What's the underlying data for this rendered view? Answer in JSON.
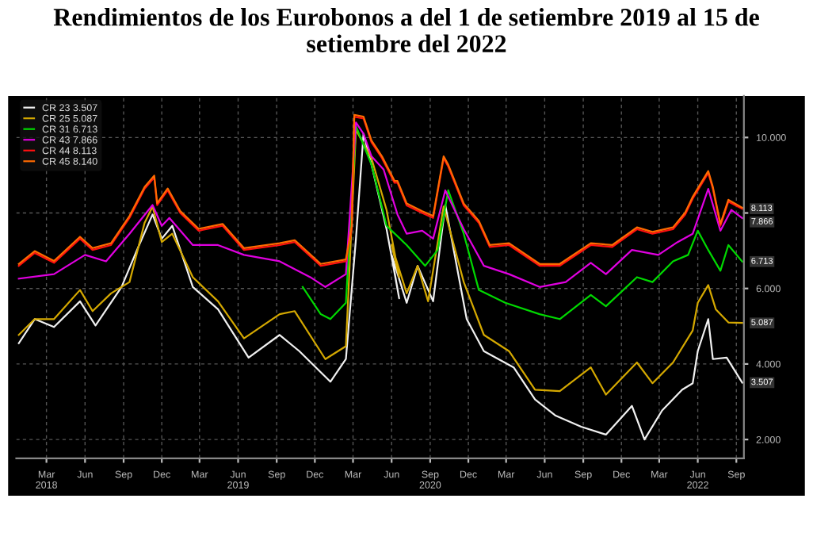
{
  "chart_data": {
    "type": "line",
    "title": "Rendimientos de los Eurobonos a del 1 de setiembre 2019 al 15 de setiembre del 2022",
    "series": [
      {
        "name": "CR 23 3.507",
        "color": "#f0f0f0",
        "x": [
          "2017-12-25",
          "2018-02-01",
          "2018-03-19",
          "2018-05-20",
          "2018-06-26",
          "2018-08-27",
          "2018-10-03",
          "2018-11-09",
          "2018-12-01",
          "2018-12-26",
          "2019-02-13",
          "2019-04-14",
          "2019-06-26",
          "2019-09-08",
          "2019-10-25",
          "2020-01-07",
          "2020-02-13",
          "2020-03-08",
          "2020-03-26",
          "2020-04-14",
          "2020-05-20",
          "2020-06-19",
          "2020-06-01",
          "2020-07-07",
          "2020-08-02",
          "2020-09-08",
          "2020-10-07",
          "2020-11-27",
          "2021-01-07",
          "2021-03-19",
          "2021-05-09",
          "2021-06-26",
          "2021-08-27",
          "2021-10-25",
          "2021-12-26",
          "2022-01-25",
          "2022-03-08",
          "2022-04-25",
          "2022-05-20",
          "2022-06-01",
          "2022-06-26",
          "2022-07-07",
          "2022-08-09",
          "2022-09-15"
        ],
        "values": [
          4.55,
          5.19,
          4.98,
          5.66,
          5.02,
          6.04,
          7.02,
          7.96,
          7.32,
          7.66,
          6.04,
          5.45,
          4.17,
          4.77,
          4.34,
          3.53,
          4.13,
          7.32,
          10.1,
          9.28,
          7.57,
          5.74,
          6.89,
          5.62,
          6.6,
          5.66,
          8.21,
          5.19,
          4.34,
          3.91,
          3.06,
          2.64,
          2.34,
          2.13,
          2.89,
          2.0,
          2.77,
          3.32,
          3.49,
          4.34,
          5.19,
          4.13,
          4.17,
          3.507
        ]
      },
      {
        "name": "CR 25 5.087",
        "color": "#d4a800",
        "x": [
          "2017-12-25",
          "2018-02-01",
          "2018-03-19",
          "2018-05-20",
          "2018-06-19",
          "2018-08-02",
          "2018-09-15",
          "2018-10-21",
          "2018-11-09",
          "2018-12-01",
          "2018-12-26",
          "2019-02-13",
          "2019-04-14",
          "2019-06-15",
          "2019-09-08",
          "2019-10-14",
          "2019-12-26",
          "2020-02-13",
          "2020-03-08",
          "2020-04-14",
          "2020-05-20",
          "2020-06-19",
          "2020-06-01",
          "2020-07-07",
          "2020-08-02",
          "2020-08-27",
          "2020-10-03",
          "2020-11-20",
          "2021-01-07",
          "2021-03-08",
          "2021-05-09",
          "2021-07-07",
          "2021-09-19",
          "2021-10-25",
          "2022-01-07",
          "2022-02-13",
          "2022-04-03",
          "2022-05-20",
          "2022-06-01",
          "2022-06-26",
          "2022-07-14",
          "2022-08-13",
          "2022-09-15"
        ],
        "values": [
          4.77,
          5.19,
          5.19,
          5.96,
          5.4,
          5.87,
          6.17,
          7.74,
          8.17,
          7.23,
          7.45,
          6.3,
          5.66,
          4.68,
          5.32,
          5.4,
          4.13,
          4.47,
          10.2,
          9.45,
          8.08,
          6.3,
          7.15,
          5.87,
          6.6,
          5.66,
          8.17,
          6.17,
          4.77,
          4.34,
          3.32,
          3.28,
          3.91,
          3.19,
          4.04,
          3.49,
          4.04,
          4.89,
          5.62,
          6.09,
          5.45,
          5.1,
          5.087
        ]
      },
      {
        "name": "CR 31 6.713",
        "color": "#00d800",
        "x": [
          "2019-11-02",
          "2019-12-15",
          "2020-01-07",
          "2020-02-13",
          "2020-03-08",
          "2020-04-14",
          "2020-05-20",
          "2020-07-07",
          "2020-08-20",
          "2020-09-19",
          "2020-10-14",
          "2020-11-20",
          "2020-12-26",
          "2021-02-27",
          "2021-05-20",
          "2021-07-07",
          "2021-09-19",
          "2021-10-25",
          "2022-01-07",
          "2022-02-13",
          "2022-04-03",
          "2022-05-09",
          "2022-06-01",
          "2022-06-26",
          "2022-07-25",
          "2022-08-13",
          "2022-09-15"
        ],
        "values": [
          6.04,
          5.32,
          5.19,
          5.62,
          10.3,
          9.28,
          7.66,
          7.15,
          6.6,
          7.02,
          8.6,
          7.45,
          5.96,
          5.62,
          5.32,
          5.19,
          5.83,
          5.53,
          6.3,
          6.17,
          6.72,
          6.89,
          7.53,
          7.02,
          6.47,
          7.15,
          6.713
        ]
      },
      {
        "name": "CR 43 7.866",
        "color": "#e000e0",
        "x": [
          "2017-12-25",
          "2018-03-19",
          "2018-06-01",
          "2018-07-21",
          "2018-09-15",
          "2018-11-09",
          "2018-12-01",
          "2018-12-19",
          "2019-02-13",
          "2019-04-14",
          "2019-06-15",
          "2019-09-08",
          "2019-11-20",
          "2019-12-26",
          "2020-02-13",
          "2020-03-08",
          "2020-03-26",
          "2020-04-14",
          "2020-05-13",
          "2020-06-15",
          "2020-07-07",
          "2020-08-13",
          "2020-09-08",
          "2020-10-07",
          "2020-11-20",
          "2021-01-07",
          "2021-03-08",
          "2021-05-20",
          "2021-07-21",
          "2021-09-19",
          "2021-10-25",
          "2021-12-26",
          "2022-02-27",
          "2022-04-14",
          "2022-05-20",
          "2022-06-26",
          "2022-07-25",
          "2022-08-20",
          "2022-09-15"
        ],
        "values": [
          6.26,
          6.38,
          6.89,
          6.72,
          7.45,
          8.21,
          7.66,
          7.87,
          7.15,
          7.15,
          6.89,
          6.72,
          6.3,
          6.04,
          6.38,
          10.4,
          10.1,
          9.5,
          9.15,
          7.96,
          7.45,
          7.53,
          7.32,
          8.6,
          7.57,
          6.6,
          6.38,
          6.04,
          6.17,
          6.68,
          6.38,
          7.02,
          6.89,
          7.23,
          7.45,
          8.64,
          7.53,
          8.08,
          7.866
        ]
      },
      {
        "name": "CR 44 8.113",
        "color": "#ff1010",
        "x": [
          "2017-12-25",
          "2018-02-01",
          "2018-03-19",
          "2018-05-20",
          "2018-06-19",
          "2018-08-02",
          "2018-09-15",
          "2018-10-21",
          "2018-11-13",
          "2018-11-20",
          "2018-12-15",
          "2019-01-14",
          "2019-02-27",
          "2019-04-25",
          "2019-06-15",
          "2019-09-08",
          "2019-10-14",
          "2019-12-15",
          "2020-02-13",
          "2020-02-27",
          "2020-03-04",
          "2020-03-26",
          "2020-04-14",
          "2020-05-09",
          "2020-06-08",
          "2020-06-15",
          "2020-07-07",
          "2020-08-13",
          "2020-09-08",
          "2020-10-03",
          "2020-10-14",
          "2020-11-20",
          "2020-12-26",
          "2021-01-21",
          "2021-03-08",
          "2021-05-20",
          "2021-07-07",
          "2021-09-19",
          "2021-11-09",
          "2022-01-07",
          "2022-02-13",
          "2022-04-03",
          "2022-05-02",
          "2022-05-20",
          "2022-06-26",
          "2022-07-07",
          "2022-07-25",
          "2022-08-13",
          "2022-09-15"
        ],
        "values": [
          6.6,
          6.94,
          6.68,
          7.32,
          7.02,
          7.15,
          7.87,
          8.64,
          8.94,
          8.21,
          8.6,
          8.0,
          7.53,
          7.66,
          7.02,
          7.15,
          7.23,
          6.6,
          6.72,
          7.6,
          10.55,
          10.5,
          9.87,
          9.45,
          8.8,
          8.8,
          8.2,
          8.0,
          7.87,
          9.45,
          9.23,
          8.2,
          7.74,
          7.1,
          7.15,
          6.6,
          6.6,
          7.15,
          7.1,
          7.57,
          7.45,
          7.57,
          7.96,
          8.38,
          9.06,
          8.64,
          7.66,
          8.3,
          8.113
        ]
      },
      {
        "name": "CR 45 8.140",
        "color": "#ff6a00",
        "x": [
          "2017-12-25",
          "2018-02-01",
          "2018-03-19",
          "2018-05-20",
          "2018-06-19",
          "2018-08-02",
          "2018-09-15",
          "2018-10-21",
          "2018-11-13",
          "2018-11-20",
          "2018-12-15",
          "2019-01-14",
          "2019-02-27",
          "2019-04-25",
          "2019-06-15",
          "2019-09-08",
          "2019-10-14",
          "2019-12-15",
          "2020-02-13",
          "2020-02-27",
          "2020-03-04",
          "2020-03-26",
          "2020-04-14",
          "2020-05-09",
          "2020-06-08",
          "2020-06-15",
          "2020-07-07",
          "2020-08-13",
          "2020-09-08",
          "2020-10-03",
          "2020-10-14",
          "2020-11-20",
          "2020-12-26",
          "2021-01-21",
          "2021-03-08",
          "2021-05-20",
          "2021-07-07",
          "2021-09-19",
          "2021-11-09",
          "2022-01-07",
          "2022-02-13",
          "2022-04-03",
          "2022-05-02",
          "2022-05-20",
          "2022-06-26",
          "2022-07-07",
          "2022-07-25",
          "2022-08-13",
          "2022-09-15"
        ],
        "values": [
          6.65,
          6.99,
          6.73,
          7.37,
          7.07,
          7.2,
          7.92,
          8.69,
          8.99,
          8.26,
          8.65,
          8.05,
          7.58,
          7.71,
          7.07,
          7.2,
          7.28,
          6.65,
          6.77,
          7.65,
          10.6,
          10.55,
          9.92,
          9.5,
          8.85,
          8.85,
          8.25,
          8.05,
          7.92,
          9.5,
          9.28,
          8.25,
          7.79,
          7.15,
          7.2,
          6.65,
          6.65,
          7.2,
          7.15,
          7.62,
          7.5,
          7.62,
          8.01,
          8.43,
          9.11,
          8.69,
          7.71,
          8.35,
          8.14
        ]
      }
    ],
    "annotations": [
      {
        "text": "8.113",
        "x": "2022-09-15",
        "y": 8.113
      },
      {
        "text": "7.866",
        "x": "2022-09-15",
        "y": 7.866
      },
      {
        "text": "6.713",
        "x": "2022-09-15",
        "y": 6.713
      },
      {
        "text": "5.087",
        "x": "2022-09-15",
        "y": 5.087
      },
      {
        "text": "3.507",
        "x": "2022-09-15",
        "y": 3.507
      }
    ],
    "xlim": [
      "2017-12-19",
      "2022-09-19"
    ],
    "xticks": [
      {
        "value": "2018-03-01",
        "label": "Mar\n2018"
      },
      {
        "value": "2018-06-01",
        "label": "Jun"
      },
      {
        "value": "2018-09-01",
        "label": "Sep"
      },
      {
        "value": "2018-12-01",
        "label": "Dec"
      },
      {
        "value": "2019-03-01",
        "label": "Mar"
      },
      {
        "value": "2019-06-01",
        "label": "Jun\n2019"
      },
      {
        "value": "2019-09-01",
        "label": "Sep"
      },
      {
        "value": "2019-12-01",
        "label": "Dec"
      },
      {
        "value": "2020-03-01",
        "label": "Mar"
      },
      {
        "value": "2020-06-01",
        "label": "Jun"
      },
      {
        "value": "2020-09-01",
        "label": "Sep\n2020"
      },
      {
        "value": "2020-12-01",
        "label": "Dec"
      },
      {
        "value": "2021-03-01",
        "label": "Mar"
      },
      {
        "value": "2021-06-01",
        "label": "Jun"
      },
      {
        "value": "2021-09-01",
        "label": "Sep"
      },
      {
        "value": "2021-12-01",
        "label": "Dec"
      },
      {
        "value": "2022-03-01",
        "label": "Mar"
      },
      {
        "value": "2022-06-01",
        "label": "Jun\n2022"
      },
      {
        "value": "2022-09-01",
        "label": "Sep"
      }
    ],
    "ylim": [
      1.5,
      11.1
    ],
    "yticks": [
      {
        "value": 2,
        "label": "2.000"
      },
      {
        "value": 4,
        "label": "4.000"
      },
      {
        "value": 6,
        "label": "6.000"
      },
      {
        "value": 8,
        "label": null
      },
      {
        "value": 10,
        "label": "10.000"
      }
    ],
    "grid": true,
    "legend": "top left",
    "line_style": "solid",
    "marker": "none"
  }
}
